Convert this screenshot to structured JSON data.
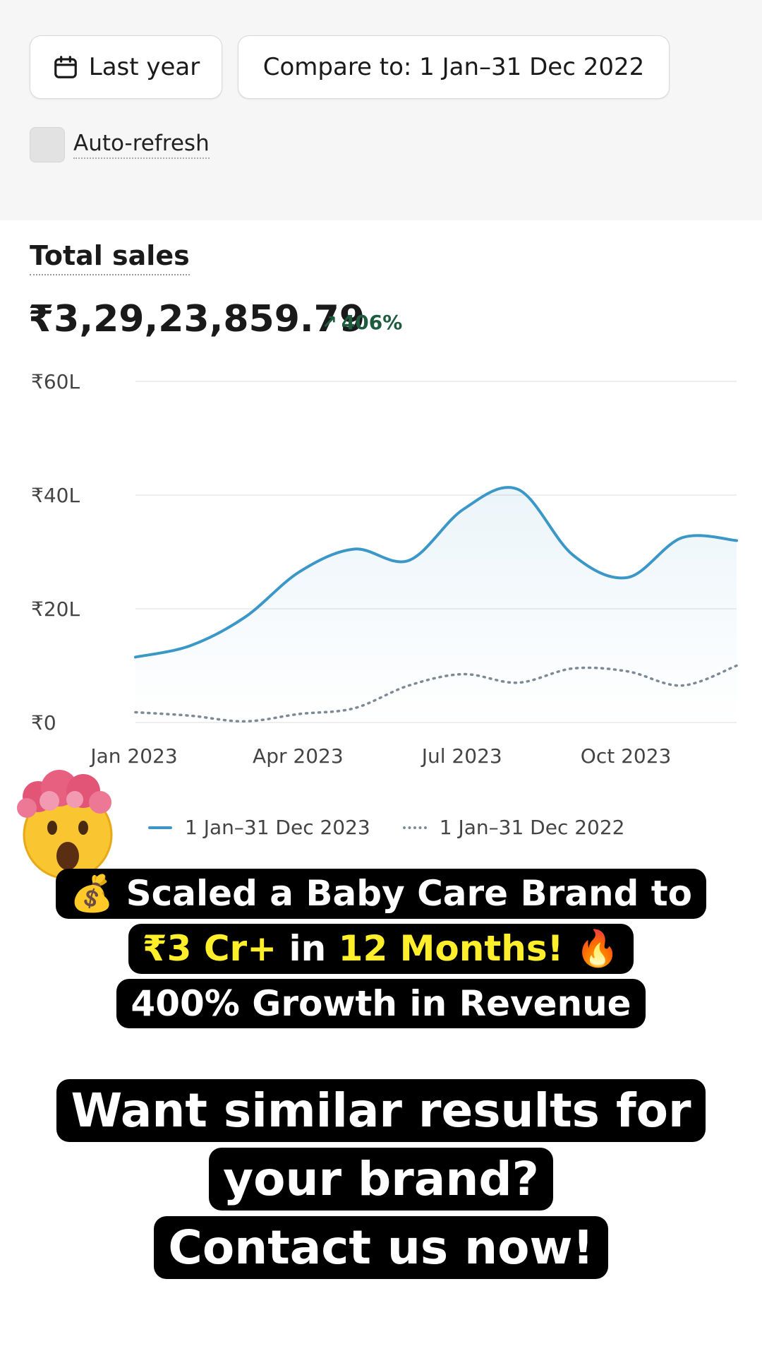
{
  "toolbar": {
    "date_range_label": "Last year",
    "compare_label": "Compare to: 1 Jan–31 Dec 2022",
    "auto_refresh_label": "Auto-refresh"
  },
  "summary": {
    "title": "Total sales",
    "value": "₹3,29,23,859.79",
    "growth": "406%"
  },
  "chart_data": {
    "type": "line",
    "y_ticks": [
      "₹60L",
      "₹40L",
      "₹20L",
      "₹0"
    ],
    "x_ticks": [
      "Jan 2023",
      "Apr 2023",
      "Jul 2023",
      "Oct 2023"
    ],
    "ylim": [
      0,
      60
    ],
    "x": [
      "Jan 2023",
      "Feb 2023",
      "Mar 2023",
      "Apr 2023",
      "May 2023",
      "Jun 2023",
      "Jul 2023",
      "Aug 2023",
      "Sep 2023",
      "Oct 2023",
      "Nov 2023",
      "Dec 2023"
    ],
    "series": [
      {
        "name": "1 Jan–31 Dec 2023",
        "style": "solid",
        "color": "#3a97c8",
        "values": [
          11.5,
          13.5,
          18.5,
          26.5,
          30.5,
          28.5,
          37.5,
          41,
          29.5,
          25.5,
          32.5,
          32
        ]
      },
      {
        "name": "1 Jan–31 Dec 2022",
        "style": "dotted",
        "color": "#7d8a96",
        "values": [
          1.8,
          1.2,
          0.2,
          1.5,
          2.5,
          6.5,
          8.5,
          7.0,
          9.5,
          9.0,
          6.5,
          10
        ]
      }
    ],
    "grid": true,
    "legend_position": "bottom"
  },
  "promo": {
    "line1_icon": "💰",
    "line1": "Scaled a Baby Care Brand to",
    "line2_highlight1": "₹3 Cr+",
    "line2_mid": " in ",
    "line2_highlight2": "12 Months!",
    "line2_icon": "🔥",
    "line3": "400% Growth in Revenue",
    "cta1": "Want similar results for",
    "cta2": "your brand?",
    "cta3": "Contact us now!"
  }
}
